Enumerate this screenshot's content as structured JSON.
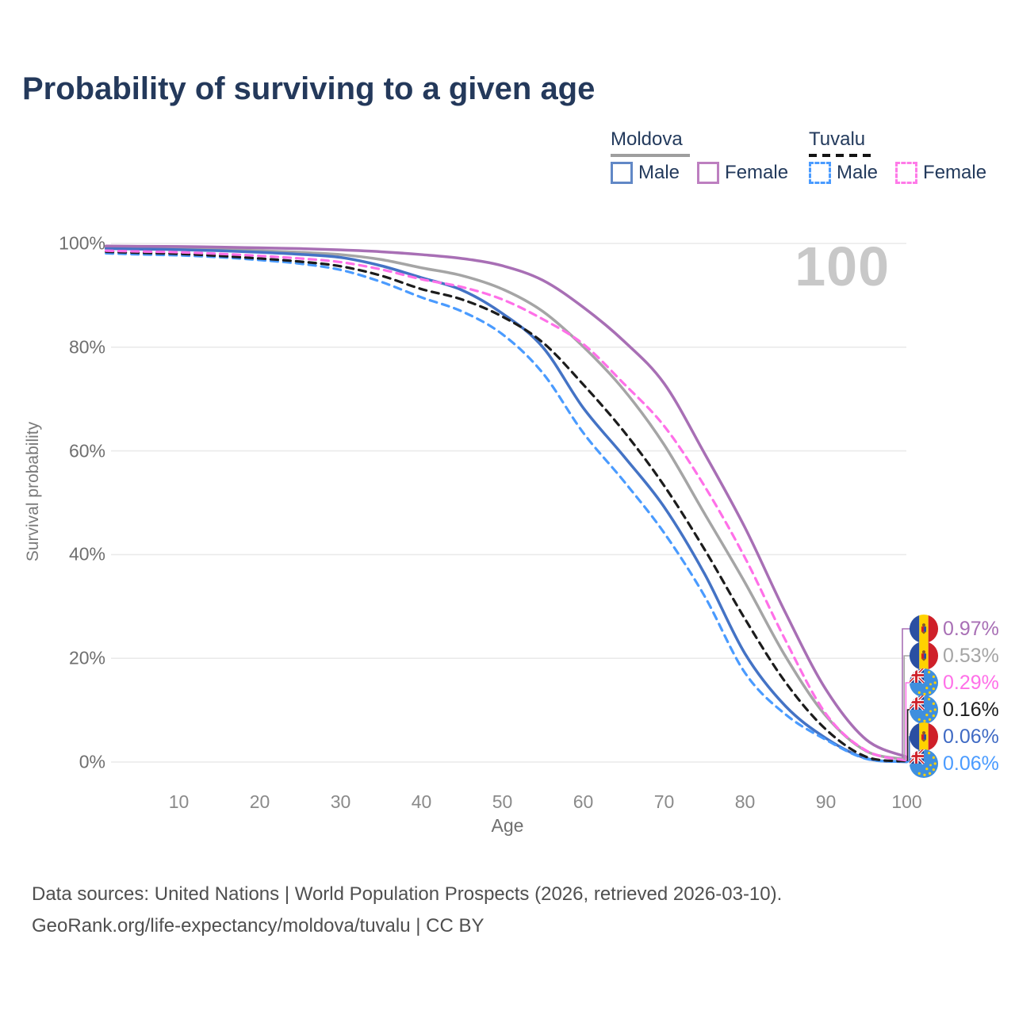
{
  "title": "Probability of surviving to a given age",
  "watermark_age": "100",
  "legend": {
    "groups": [
      {
        "name": "Moldova",
        "line_style": "solid",
        "line_color": "#9e9e9e",
        "items": [
          {
            "label": "Male",
            "color": "#6188c6",
            "style": "solid"
          },
          {
            "label": "Female",
            "color": "#bd7fc0",
            "style": "solid"
          }
        ]
      },
      {
        "name": "Tuvalu",
        "line_style": "dashed",
        "line_color": "#141414",
        "items": [
          {
            "label": "Male",
            "color": "#4a9bff",
            "style": "dashed"
          },
          {
            "label": "Female",
            "color": "#ff7ae8",
            "style": "dashed"
          }
        ]
      }
    ]
  },
  "chart_data": {
    "type": "line",
    "title": "Probability of surviving to a given age",
    "xlabel": "Age",
    "ylabel": "Survival probability",
    "xlim": [
      1,
      100
    ],
    "ylim": [
      0,
      100
    ],
    "grid": "horizontal",
    "x_ticks": [
      10,
      20,
      30,
      40,
      50,
      60,
      70,
      80,
      90,
      100
    ],
    "y_ticks": [
      {
        "pct": 0,
        "label": "0%"
      },
      {
        "pct": 20,
        "label": "20%"
      },
      {
        "pct": 40,
        "label": "40%"
      },
      {
        "pct": 60,
        "label": "60%"
      },
      {
        "pct": 80,
        "label": "80%"
      },
      {
        "pct": 100,
        "label": "100%"
      }
    ],
    "series": [
      {
        "name": "Moldova All",
        "country": "Moldova",
        "sex": "all",
        "color": "#a5a5a5",
        "dash": false,
        "points": [
          [
            1,
            99.2
          ],
          [
            5,
            99.1
          ],
          [
            10,
            99.0
          ],
          [
            15,
            98.85
          ],
          [
            20,
            98.6
          ],
          [
            25,
            98.3
          ],
          [
            30,
            97.85
          ],
          [
            35,
            96.9
          ],
          [
            40,
            95.3
          ],
          [
            45,
            93.8
          ],
          [
            50,
            91.2
          ],
          [
            55,
            86.9
          ],
          [
            60,
            80.1
          ],
          [
            65,
            71.8
          ],
          [
            70,
            61.2
          ],
          [
            75,
            47.9
          ],
          [
            80,
            34.6
          ],
          [
            85,
            20.4
          ],
          [
            90,
            8.9
          ],
          [
            95,
            2.1
          ],
          [
            100,
            0.53
          ]
        ]
      },
      {
        "name": "Moldova Male",
        "country": "Moldova",
        "sex": "male",
        "color": "#4473c5",
        "dash": false,
        "points": [
          [
            1,
            99.0
          ],
          [
            5,
            98.92
          ],
          [
            10,
            98.8
          ],
          [
            15,
            98.6
          ],
          [
            20,
            98.3
          ],
          [
            25,
            97.9
          ],
          [
            30,
            97.3
          ],
          [
            35,
            95.7
          ],
          [
            40,
            93.4
          ],
          [
            45,
            91.0
          ],
          [
            50,
            86.5
          ],
          [
            55,
            80.0
          ],
          [
            60,
            68.3
          ],
          [
            65,
            59.0
          ],
          [
            70,
            49.2
          ],
          [
            75,
            36.3
          ],
          [
            80,
            20.9
          ],
          [
            85,
            10.8
          ],
          [
            90,
            4.6
          ],
          [
            95,
            0.7
          ],
          [
            100,
            0.06
          ]
        ]
      },
      {
        "name": "Moldova Female",
        "country": "Moldova",
        "sex": "female",
        "color": "#a86fb5",
        "dash": false,
        "points": [
          [
            1,
            99.5
          ],
          [
            5,
            99.45
          ],
          [
            10,
            99.4
          ],
          [
            15,
            99.3
          ],
          [
            20,
            99.15
          ],
          [
            25,
            99.0
          ],
          [
            30,
            98.75
          ],
          [
            35,
            98.4
          ],
          [
            40,
            97.85
          ],
          [
            45,
            97.1
          ],
          [
            50,
            95.7
          ],
          [
            55,
            92.9
          ],
          [
            60,
            87.7
          ],
          [
            65,
            81.2
          ],
          [
            70,
            73.0
          ],
          [
            75,
            59.5
          ],
          [
            80,
            45.2
          ],
          [
            85,
            28.8
          ],
          [
            90,
            14.0
          ],
          [
            95,
            4.3
          ],
          [
            100,
            0.97
          ]
        ]
      },
      {
        "name": "Tuvalu Male",
        "country": "Tuvalu",
        "sex": "male",
        "color": "#4a9bff",
        "dash": true,
        "points": [
          [
            1,
            98.1
          ],
          [
            5,
            97.9
          ],
          [
            10,
            97.7
          ],
          [
            15,
            97.35
          ],
          [
            20,
            96.8
          ],
          [
            25,
            96.1
          ],
          [
            30,
            94.9
          ],
          [
            35,
            92.6
          ],
          [
            40,
            89.6
          ],
          [
            45,
            86.9
          ],
          [
            50,
            82.5
          ],
          [
            55,
            75.0
          ],
          [
            60,
            63.5
          ],
          [
            65,
            54.2
          ],
          [
            70,
            44.2
          ],
          [
            75,
            32.0
          ],
          [
            80,
            17.2
          ],
          [
            85,
            9.2
          ],
          [
            90,
            4.3
          ],
          [
            95,
            0.62
          ],
          [
            100,
            0.06
          ]
        ]
      },
      {
        "name": "Tuvalu All",
        "country": "Tuvalu",
        "sex": "all",
        "color": "#1c1c1c",
        "dash": true,
        "points": [
          [
            1,
            98.4
          ],
          [
            5,
            98.2
          ],
          [
            10,
            98.0
          ],
          [
            15,
            97.6
          ],
          [
            20,
            97.1
          ],
          [
            25,
            96.5
          ],
          [
            30,
            95.6
          ],
          [
            35,
            93.8
          ],
          [
            40,
            91.2
          ],
          [
            45,
            89.2
          ],
          [
            50,
            85.9
          ],
          [
            55,
            80.9
          ],
          [
            60,
            72.8
          ],
          [
            65,
            63.8
          ],
          [
            70,
            53.3
          ],
          [
            75,
            41.0
          ],
          [
            80,
            27.6
          ],
          [
            85,
            15.4
          ],
          [
            90,
            6.3
          ],
          [
            95,
            1.0
          ],
          [
            100,
            0.16
          ]
        ]
      },
      {
        "name": "Tuvalu Female",
        "country": "Tuvalu",
        "sex": "female",
        "color": "#ff70e8",
        "dash": true,
        "points": [
          [
            1,
            98.6
          ],
          [
            5,
            98.45
          ],
          [
            10,
            98.3
          ],
          [
            15,
            98.0
          ],
          [
            20,
            97.6
          ],
          [
            25,
            97.1
          ],
          [
            30,
            96.4
          ],
          [
            35,
            95.0
          ],
          [
            40,
            93.1
          ],
          [
            45,
            91.6
          ],
          [
            50,
            89.2
          ],
          [
            55,
            85.4
          ],
          [
            60,
            80.6
          ],
          [
            65,
            73.0
          ],
          [
            70,
            64.8
          ],
          [
            75,
            53.2
          ],
          [
            80,
            39.4
          ],
          [
            85,
            23.5
          ],
          [
            90,
            9.3
          ],
          [
            95,
            2.2
          ],
          [
            100,
            0.29
          ]
        ]
      }
    ],
    "end_labels": [
      {
        "flag": "moldova",
        "series": "Moldova Female",
        "label": "0.97%",
        "color": "#a86fb5"
      },
      {
        "flag": "moldova",
        "series": "Moldova All",
        "label": "0.53%",
        "color": "#a5a5a5"
      },
      {
        "flag": "tuvalu",
        "series": "Tuvalu Female",
        "label": "0.29%",
        "color": "#ff70e8"
      },
      {
        "flag": "tuvalu",
        "series": "Tuvalu All",
        "label": "0.16%",
        "color": "#1c1c1c"
      },
      {
        "flag": "moldova",
        "series": "Moldova Male",
        "label": "0.06%",
        "color": "#3f6ac4"
      },
      {
        "flag": "tuvalu",
        "series": "Tuvalu Male",
        "label": "0.06%",
        "color": "#4a9bff"
      }
    ]
  },
  "footer": {
    "line1": "Data sources: United Nations | World Population Prospects (2026, retrieved 2026-03-10).",
    "line2": "GeoRank.org/life-expectancy/moldova/tuvalu | CC BY"
  }
}
